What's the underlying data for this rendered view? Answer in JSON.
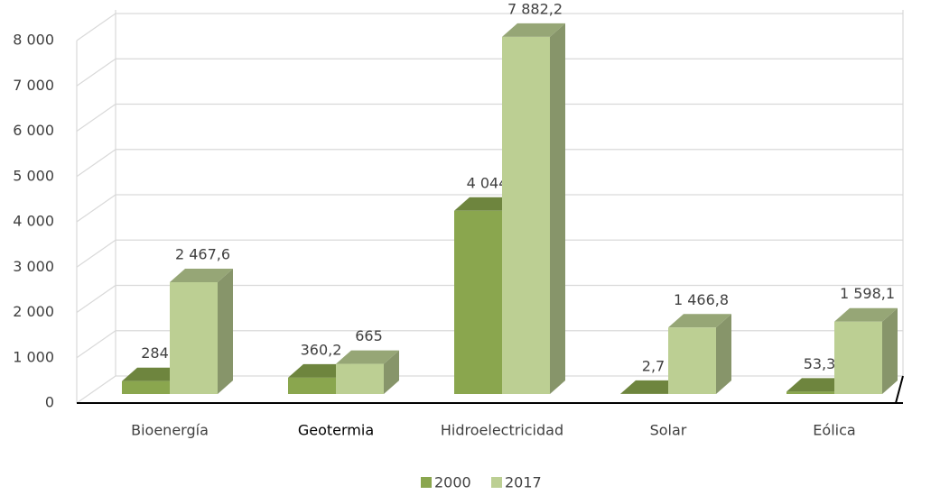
{
  "chart_data": {
    "type": "bar3d",
    "categories": [
      "Bioenergía",
      "Geotermia",
      "Hidroelectricidad",
      "Solar",
      "Eólica"
    ],
    "series": [
      {
        "name": "2000",
        "color": "#8aa64e",
        "values": [
          284,
          360.2,
          4044,
          2.7,
          53.3
        ],
        "value_labels": [
          "284",
          "360,2",
          "4 044",
          "2,7",
          "53,3"
        ]
      },
      {
        "name": "2017",
        "color": "#bccf93",
        "values": [
          2467.6,
          665,
          7882.2,
          1466.8,
          1598.1
        ],
        "value_labels": [
          "2 467,6",
          "665",
          "7 882,2",
          "1 466,8",
          "1 598,1"
        ]
      }
    ],
    "ylim": [
      0,
      8000
    ],
    "yticks": [
      0,
      {
        "value": 1000,
        "label": "1 000"
      },
      {
        "value": 2000,
        "label": "2 000"
      },
      {
        "value": 3000,
        "label": "3 000"
      },
      {
        "value": 4000,
        "label": "4 000"
      },
      {
        "value": 5000,
        "label": "5 000"
      },
      {
        "value": 6000,
        "label": "6 000"
      },
      {
        "value": 7000,
        "label": "7 000"
      },
      {
        "value": 8000,
        "label": "8 000"
      }
    ],
    "grid": true,
    "legend": "bottom"
  }
}
